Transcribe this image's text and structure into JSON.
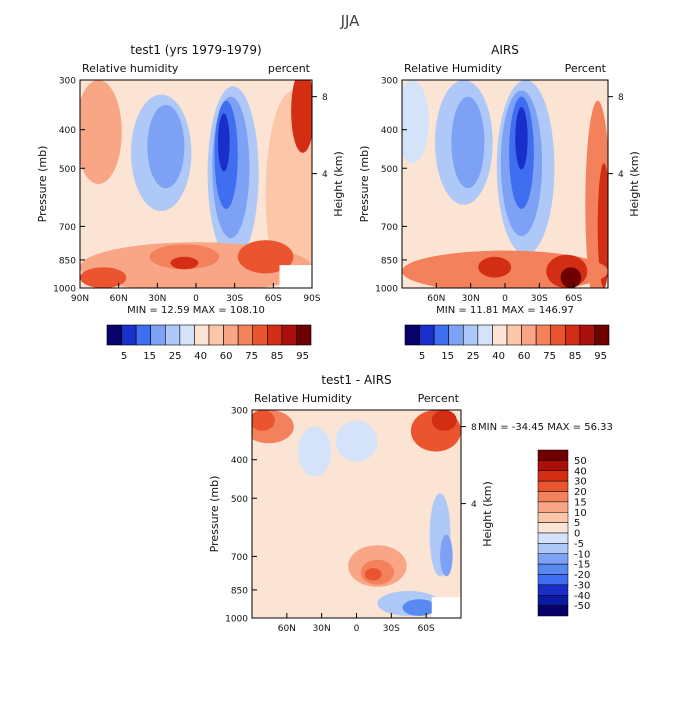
{
  "page_title": "JJA",
  "cb_levels_abs": [
    "5",
    "15",
    "25",
    "40",
    "60",
    "75",
    "85",
    "95"
  ],
  "cb_levels_diff": [
    "50",
    "40",
    "30",
    "20",
    "15",
    "10",
    "5",
    "0",
    "-5",
    "-10",
    "-15",
    "-20",
    "-30",
    "-40",
    "-50"
  ],
  "cb_colors_abs": [
    "#08006b",
    "#1a2fc9",
    "#3f6ef0",
    "#7da2f5",
    "#aec8f7",
    "#d5e3fa",
    "#fbe4d3",
    "#fcc6a8",
    "#f8a686",
    "#f3825c",
    "#ea5530",
    "#d32e14",
    "#a90f0b",
    "#6e0000"
  ],
  "cb_colors_diff": [
    "#6e0000",
    "#a90f0b",
    "#d32e14",
    "#ea5530",
    "#f3825c",
    "#f8a686",
    "#fcc6a8",
    "#fbe4d3",
    "#d5e3fa",
    "#aec8f7",
    "#7da2f5",
    "#5789f0",
    "#3f6ef0",
    "#1a2fc9",
    "#0c1aa0",
    "#08006b"
  ],
  "chart_data": [
    {
      "type": "heatmap",
      "title": "test1 (yrs 1979-1979)",
      "left_label": "Relative humidity",
      "right_label": "percent",
      "ylabel": "Pressure (mb)",
      "y2label": "Height (km)",
      "y_ticks": [
        300,
        400,
        500,
        700,
        850,
        1000
      ],
      "y2_ticks": [
        8,
        4
      ],
      "x_ticks": [
        "90N",
        "60N",
        "30N",
        "0",
        "30S",
        "60S",
        "90S"
      ],
      "stats": "MIN =   12.59   MAX =  108.10"
    },
    {
      "type": "heatmap",
      "title": "AIRS",
      "left_label": "Relative Humidity",
      "right_label": "Percent",
      "ylabel": "Pressure (mb)",
      "y2label": "Height (km)",
      "y_ticks": [
        300,
        400,
        500,
        700,
        850,
        1000
      ],
      "y2_ticks": [
        8,
        4
      ],
      "x_ticks": [
        "60N",
        "30N",
        "0",
        "30S",
        "60S"
      ],
      "stats": "MIN =   11.81   MAX =  146.97"
    },
    {
      "type": "heatmap",
      "title": "test1 - AIRS",
      "left_label": "Relative Humidity",
      "right_label": "Percent",
      "ylabel": "Pressure (mb)",
      "y2label": "Height (km)",
      "y_ticks": [
        300,
        400,
        500,
        700,
        850,
        1000
      ],
      "y2_ticks": [
        8,
        4
      ],
      "x_ticks": [
        "60N",
        "30N",
        "0",
        "30S",
        "60S"
      ],
      "stats": "MIN = -34.45   MAX =   56.33"
    }
  ]
}
